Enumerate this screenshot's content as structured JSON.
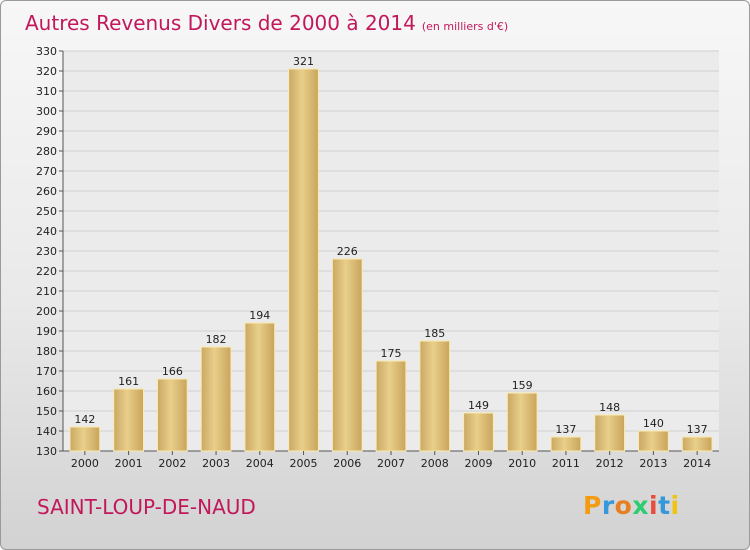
{
  "header": {
    "title": "Autres Revenus Divers de 2000 à 2014",
    "unit": "(en milliers d'€)"
  },
  "commune": "SAINT-LOUP-DE-NAUD",
  "logo": {
    "text": "Proxiti",
    "letters": [
      "P",
      "r",
      "o",
      "x",
      "i",
      "t",
      "i"
    ],
    "colors": [
      "#f39c12",
      "#3498db",
      "#e67e22",
      "#2ecc71",
      "#e74c3c",
      "#3498db",
      "#f1c40f"
    ]
  },
  "chart_data": {
    "type": "bar",
    "categories": [
      "2000",
      "2001",
      "2002",
      "2003",
      "2004",
      "2005",
      "2006",
      "2007",
      "2008",
      "2009",
      "2010",
      "2011",
      "2012",
      "2013",
      "2014"
    ],
    "values": [
      142,
      161,
      166,
      182,
      194,
      321,
      226,
      175,
      185,
      149,
      159,
      137,
      148,
      140,
      137
    ],
    "ylim": [
      130,
      330
    ],
    "yticks": [
      130,
      140,
      150,
      160,
      170,
      180,
      190,
      200,
      210,
      220,
      230,
      240,
      250,
      260,
      270,
      280,
      290,
      300,
      310,
      320,
      330
    ],
    "grid": true,
    "bar_color": "#e8cf8a",
    "bar_edge_color": "#fbeab0",
    "grid_color": "#d0d0d0"
  }
}
